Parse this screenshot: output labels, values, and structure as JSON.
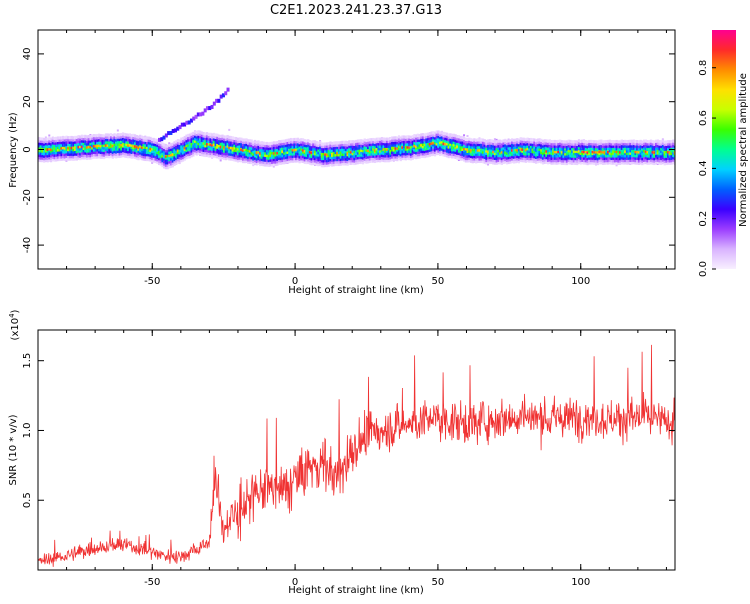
{
  "title": "C2E1.2023.241.23.37.G13",
  "colors": {
    "snr_line": "#f03232",
    "colorbar_stops": [
      "#f8f0ff",
      "#d9b3ff",
      "#9b3dff",
      "#3a00ff",
      "#0060ff",
      "#00d2ff",
      "#00ff90",
      "#3aff00",
      "#c8ff00",
      "#ffe000",
      "#ff8c00",
      "#ff2a2a",
      "#ff0090"
    ]
  },
  "chart_data": [
    {
      "type": "heatmap",
      "title": "C2E1.2023.241.23.37.G13",
      "xlabel": "Height of straight line (km)",
      "ylabel": "Frequency (Hz)",
      "xlim": [
        -90,
        133
      ],
      "ylim": [
        -50,
        50
      ],
      "xticks": [
        -50,
        0,
        50,
        100
      ],
      "yticks": [
        -40,
        -20,
        0,
        20,
        40
      ],
      "colorbar": {
        "label": "Normalized spectral amplitude",
        "range": [
          0,
          0.95
        ],
        "ticks": [
          0.0,
          0.2,
          0.4,
          0.6,
          0.8
        ]
      },
      "ridge_centerline": {
        "x": [
          -90,
          -75,
          -60,
          -50,
          -45,
          -40,
          -35,
          -30,
          -20,
          -10,
          0,
          10,
          20,
          30,
          40,
          50,
          60,
          70,
          80,
          90,
          100,
          110,
          120,
          133
        ],
        "y": [
          0,
          1,
          2,
          0,
          -3,
          0,
          3,
          2,
          0,
          -2,
          0,
          -2,
          -1,
          0,
          1,
          3,
          0,
          -1,
          0,
          -1,
          -1,
          -1,
          -1,
          -1
        ]
      },
      "secondary_branch": {
        "x": [
          -48,
          -44,
          -40,
          -36,
          -32,
          -28,
          -24
        ],
        "y": [
          4,
          7,
          10,
          13,
          16,
          20,
          25
        ]
      }
    },
    {
      "type": "line",
      "xlabel": "Height of straight line (km)",
      "ylabel": "SNR (10 * v/v)",
      "scale_label": "(x10",
      "scale_exp": "4",
      "scale_close": ")",
      "xlim": [
        -90,
        133
      ],
      "ylim": [
        0,
        1.72
      ],
      "xticks": [
        -50,
        0,
        50,
        100
      ],
      "yticks": [
        0.5,
        1.0,
        1.5
      ],
      "ytick_labels": [
        "0.5",
        "1.0",
        "1.5"
      ],
      "series": [
        {
          "x": [
            -90,
            -80,
            -70,
            -60,
            -50,
            -45,
            -40,
            -35,
            -30,
            -28,
            -25,
            -20,
            -15,
            -10,
            -5,
            0,
            5,
            10,
            15,
            20,
            25,
            30,
            40,
            50,
            60,
            70,
            80,
            90,
            100,
            110,
            120,
            133
          ],
          "values": [
            0.06,
            0.1,
            0.16,
            0.18,
            0.13,
            0.1,
            0.1,
            0.14,
            0.2,
            0.65,
            0.3,
            0.42,
            0.5,
            0.6,
            0.55,
            0.65,
            0.72,
            0.78,
            0.65,
            0.85,
            0.95,
            1.0,
            1.05,
            1.08,
            1.05,
            1.08,
            1.1,
            1.08,
            1.1,
            1.08,
            1.1,
            1.05
          ]
        }
      ]
    }
  ]
}
